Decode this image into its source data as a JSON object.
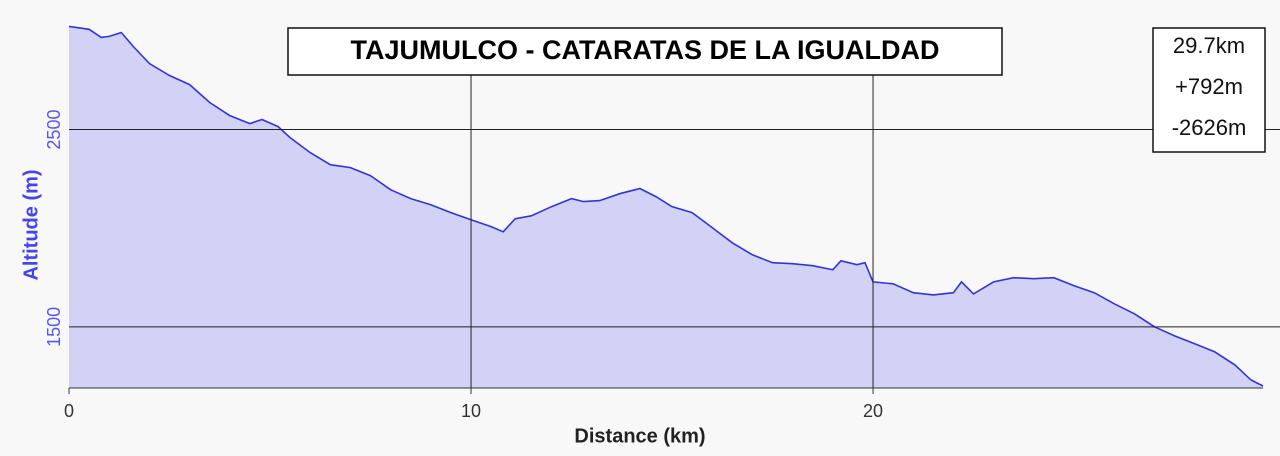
{
  "chart_data": {
    "type": "area",
    "title": "TAJUMULCO - CATARATAS DE LA IGUALDAD",
    "x_label": "Distance (km)",
    "y_label": "Altitude (m)",
    "stats": [
      "29.7km",
      "+792m",
      "-2626m"
    ],
    "series": [
      {
        "color": "#3333dd",
        "fill": "#d2d2f6",
        "x": [
          0,
          0.5,
          0.8,
          1.0,
          1.3,
          1.6,
          2,
          2.5,
          3,
          3.5,
          4,
          4.5,
          4.8,
          5.2,
          5.5,
          6,
          6.5,
          7,
          7.5,
          8,
          8.5,
          9,
          9.5,
          10,
          10.5,
          10.8,
          11.1,
          11.5,
          12,
          12.5,
          12.8,
          13.2,
          13.7,
          14.2,
          14.6,
          15,
          15.5,
          16,
          16.5,
          17,
          17.5,
          18,
          18.5,
          19,
          19.2,
          19.6,
          19.8,
          20,
          20.5,
          21,
          21.5,
          22,
          22.2,
          22.5,
          23,
          23.5,
          24,
          24.5,
          25,
          25.5,
          26,
          26.5,
          27,
          27.5,
          28,
          28.5,
          29,
          29.4,
          29.7
        ],
        "values": [
          3023,
          3008,
          2967,
          2972,
          2992,
          2921,
          2835,
          2774,
          2728,
          2637,
          2571,
          2530,
          2551,
          2515,
          2459,
          2383,
          2322,
          2307,
          2266,
          2195,
          2150,
          2119,
          2079,
          2043,
          2008,
          1982,
          2048,
          2063,
          2109,
          2150,
          2135,
          2140,
          2175,
          2201,
          2160,
          2109,
          2079,
          2003,
          1926,
          1865,
          1825,
          1820,
          1810,
          1789,
          1835,
          1815,
          1825,
          1728,
          1718,
          1673,
          1662,
          1673,
          1728,
          1667,
          1728,
          1749,
          1744,
          1749,
          1708,
          1673,
          1617,
          1566,
          1500,
          1454,
          1414,
          1373,
          1307,
          1231,
          1200
        ]
      }
    ],
    "xlim": [
      0,
      29.7
    ],
    "ylim": [
      1190,
      3030
    ],
    "xticks": [
      0,
      10,
      20
    ],
    "yticks": [
      1500,
      2500
    ],
    "grid": true
  }
}
